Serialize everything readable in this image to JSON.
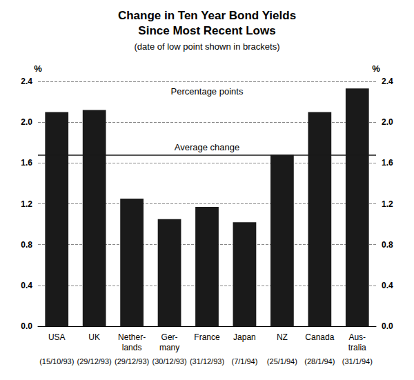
{
  "chart_data": {
    "type": "bar",
    "title": "Change in Ten Year Bond Yields\nSince Most Recent Lows",
    "subtitle": "(date of low point shown in brackets)",
    "annotations": [
      "Percentage points"
    ],
    "ylabel": "%",
    "y2label": "%",
    "categories": [
      "USA",
      "UK",
      "Nether-\nlands",
      "Ger-\nmany",
      "France",
      "Japan",
      "NZ",
      "Canada",
      "Aus-\ntralia"
    ],
    "dates": [
      "(15/10/93)",
      "(29/12/93)",
      "(29/12/93)",
      "(30/12/93)",
      "(31/12/93)",
      "(7/1/94)",
      "(25/1/94)",
      "(28/1/94)",
      "(31/1/94)"
    ],
    "values": [
      2.1,
      2.12,
      1.25,
      1.05,
      1.17,
      1.02,
      1.68,
      2.1,
      2.33
    ],
    "color": "#1a1a1a",
    "average": 1.68,
    "average_label": "Average change",
    "ylim": [
      0.0,
      2.4
    ],
    "yticks": [
      {
        "value": 0.0,
        "label": "0.0"
      },
      0.4,
      0.8,
      1.2,
      1.6,
      {
        "value": 2.0,
        "label": "2.0"
      },
      2.4
    ],
    "y2lim": [
      0.0,
      2.4
    ],
    "y2ticks": [
      {
        "value": 0.0,
        "label": "0.0"
      },
      0.4,
      0.8,
      1.2,
      1.6,
      {
        "value": 2.0,
        "label": "2.0"
      },
      2.4
    ],
    "grid": true
  }
}
